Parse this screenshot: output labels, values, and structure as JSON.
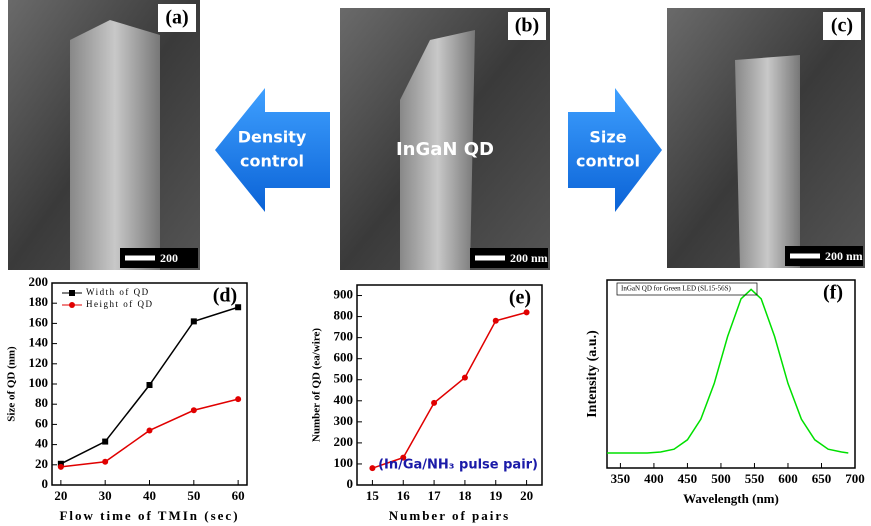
{
  "images": [
    {
      "label": "(a)",
      "scale": "200"
    },
    {
      "label": "(b)",
      "scale": "200 nm",
      "annotation": "InGaN  QD"
    },
    {
      "label": "(c)",
      "scale": "200 nm"
    }
  ],
  "arrows": [
    {
      "lines": [
        "Density",
        "control"
      ]
    },
    {
      "lines": [
        "Size",
        "control"
      ]
    }
  ],
  "chart_data": [
    {
      "type": "line",
      "label": "(d)",
      "xlabel": "Flow time of TMIn (sec)",
      "ylabel": "Size of QD (nm)",
      "x": [
        20,
        30,
        40,
        50,
        60
      ],
      "series": [
        {
          "name": "Width of QD",
          "color": "#000000",
          "marker": "square",
          "values": [
            21,
            43,
            99,
            162,
            176
          ]
        },
        {
          "name": "Height of QD",
          "color": "#e00000",
          "marker": "circle",
          "values": [
            18,
            23,
            54,
            74,
            85
          ]
        }
      ],
      "xlim": [
        18,
        62
      ],
      "xticks": [
        20,
        30,
        40,
        50,
        60
      ],
      "ylim": [
        0,
        200
      ],
      "yticks": [
        0,
        20,
        40,
        60,
        80,
        100,
        120,
        140,
        160,
        180,
        200
      ],
      "legend": "top-left"
    },
    {
      "type": "line",
      "label": "(e)",
      "xlabel": "Number of pairs",
      "ylabel": "Number of QD (ea/wire)",
      "annotation": "(In/Ga/NH₃ pulse pair)",
      "x": [
        15,
        16,
        17,
        18,
        19,
        20
      ],
      "series": [
        {
          "color": "#e00000",
          "marker": "circle",
          "values": [
            80,
            130,
            390,
            510,
            780,
            820
          ]
        }
      ],
      "xlim": [
        14.5,
        20.5
      ],
      "xticks": [
        15,
        16,
        17,
        18,
        19,
        20
      ],
      "ylim": [
        0,
        950
      ],
      "yticks": [
        0,
        100,
        200,
        300,
        400,
        500,
        600,
        700,
        800,
        900
      ]
    },
    {
      "type": "line",
      "label": "(f)",
      "xlabel": "Wavelength (nm)",
      "ylabel": "Intensity (a.u.)",
      "x": [
        330,
        350,
        370,
        390,
        410,
        430,
        450,
        470,
        490,
        510,
        530,
        545,
        560,
        580,
        600,
        620,
        640,
        660,
        680,
        690
      ],
      "series": [
        {
          "name": "InGaN QD for Green LED (SL15-56S)",
          "color": "#00e000",
          "values": [
            0.08,
            0.08,
            0.08,
            0.08,
            0.085,
            0.1,
            0.15,
            0.26,
            0.45,
            0.7,
            0.9,
            0.95,
            0.9,
            0.7,
            0.45,
            0.26,
            0.15,
            0.1,
            0.085,
            0.08
          ]
        }
      ],
      "xlim": [
        330,
        700
      ],
      "xticks": [
        350,
        400,
        450,
        500,
        550,
        600,
        650,
        700
      ],
      "ylim": [
        0,
        1
      ],
      "legend": "top"
    }
  ]
}
